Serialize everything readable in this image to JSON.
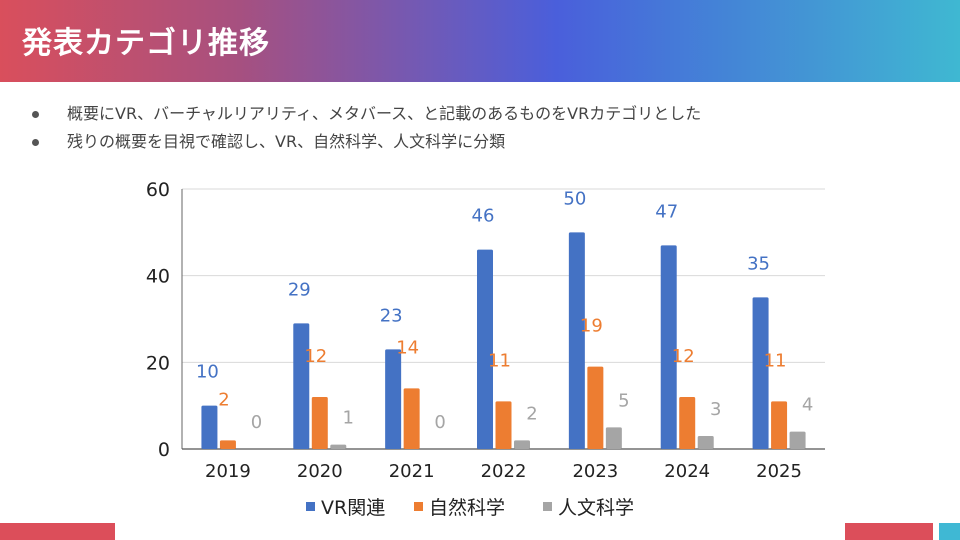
{
  "header": {
    "title": "発表カテゴリ推移"
  },
  "bullets": [
    "概要にVR、バーチャルリアリティ、メタバース、と記載のあるものをVRカテゴリとした",
    "残りの概要を目視で確認し、VR、自然科学、人文科学に分類"
  ],
  "colors": {
    "vr": "#4472c4",
    "natural": "#ed7d31",
    "humanities": "#a5a5a5",
    "accent_red": "#dc4e5a",
    "accent_cyan": "#3fb8d4"
  },
  "chart_data": {
    "type": "bar",
    "title": "",
    "xlabel": "",
    "ylabel": "",
    "categories": [
      "2019",
      "2020",
      "2021",
      "2022",
      "2023",
      "2024",
      "2025"
    ],
    "series": [
      {
        "name": "VR関連",
        "color": "#4472c4",
        "values": [
          10,
          29,
          23,
          46,
          50,
          47,
          35
        ]
      },
      {
        "name": "自然科学",
        "color": "#ed7d31",
        "values": [
          2,
          12,
          14,
          11,
          19,
          12,
          11
        ]
      },
      {
        "name": "人文科学",
        "color": "#a5a5a5",
        "values": [
          0,
          1,
          0,
          2,
          5,
          3,
          4
        ]
      }
    ],
    "ylim": [
      0,
      60
    ],
    "yticks": [
      0,
      20,
      40,
      60
    ],
    "grid": true,
    "data_labels": true,
    "legend": "bottom"
  }
}
